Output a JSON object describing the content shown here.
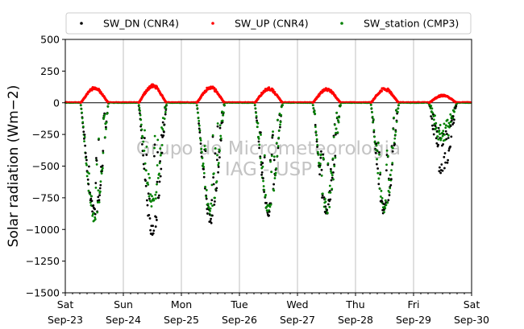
{
  "chart_data": {
    "type": "scatter",
    "title": "",
    "xlabel": "",
    "ylabel": "Solar radiation (Wm−2)",
    "ylim": [
      -1500,
      500
    ],
    "yticks": [
      -1500,
      -1250,
      -1000,
      -750,
      -500,
      -250,
      0,
      250,
      500
    ],
    "ytick_labels": [
      "−1500",
      "−1250",
      "−1000",
      "−750",
      "−500",
      "−250",
      "0",
      "250",
      "500"
    ],
    "xlim": [
      0,
      7
    ],
    "xticks": [
      {
        "day": 0,
        "dow": "Sat",
        "date": "Sep-23"
      },
      {
        "day": 1,
        "dow": "Sun",
        "date": "Sep-24"
      },
      {
        "day": 2,
        "dow": "Mon",
        "date": "Sep-25"
      },
      {
        "day": 3,
        "dow": "Tue",
        "date": "Sep-26"
      },
      {
        "day": 4,
        "dow": "Wed",
        "date": "Sep-27"
      },
      {
        "day": 5,
        "dow": "Thu",
        "date": "Sep-28"
      },
      {
        "day": 6,
        "dow": "Fri",
        "date": "Sep-29"
      },
      {
        "day": 7,
        "dow": "Sat",
        "date": "Sep-30"
      }
    ],
    "grid": "vertical",
    "legend_position": "top",
    "watermark_line1": "Grupo de Micrometeorologia",
    "watermark_line2": "IAG - USP",
    "series": [
      {
        "name": "SW_DN (CNR4)",
        "color": "#000000",
        "daily_peak": [
          -880,
          -1030,
          -920,
          -860,
          -860,
          -860,
          -600
        ]
      },
      {
        "name": "SW_UP (CNR4)",
        "color": "#ff0000",
        "daily_peak": [
          120,
          140,
          125,
          115,
          110,
          115,
          60
        ]
      },
      {
        "name": "SW_station (CMP3)",
        "color": "#008000",
        "daily_peak": [
          -940,
          -820,
          -880,
          -860,
          -860,
          -850,
          -350
        ]
      }
    ]
  }
}
